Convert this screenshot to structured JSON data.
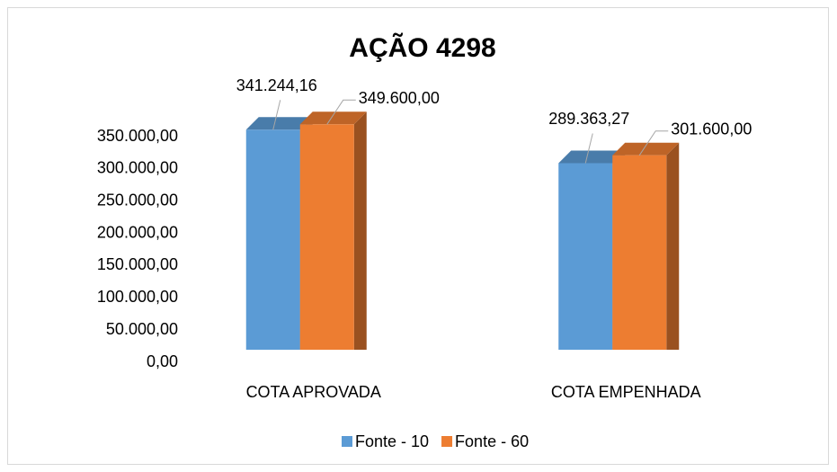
{
  "chart_data": {
    "type": "bar3d",
    "title": "AÇÃO 4298",
    "categories": [
      "COTA APROVADA",
      "COTA EMPENHADA"
    ],
    "series": [
      {
        "name": "Fonte - 10",
        "color": "#5b9bd5",
        "values": [
          341244.16,
          289363.27
        ],
        "value_labels": [
          "341.244,16",
          "289.363,27"
        ]
      },
      {
        "name": "Fonte - 60",
        "color": "#ed7d31",
        "values": [
          349600,
          301600
        ],
        "value_labels": [
          "349.600,00",
          "301.600,00"
        ]
      }
    ],
    "ylim": [
      0,
      350000
    ],
    "yticks": [
      {
        "value": 0,
        "label": "0,00"
      },
      {
        "value": 50000,
        "label": "50.000,00"
      },
      {
        "value": 100000,
        "label": "100.000,00"
      },
      {
        "value": 150000,
        "label": "150.000,00"
      },
      {
        "value": 200000,
        "label": "200.000,00"
      },
      {
        "value": 250000,
        "label": "250.000,00"
      },
      {
        "value": 300000,
        "label": "300.000,00"
      },
      {
        "value": 350000,
        "label": "350.000,00"
      }
    ],
    "legend": "bottom"
  }
}
